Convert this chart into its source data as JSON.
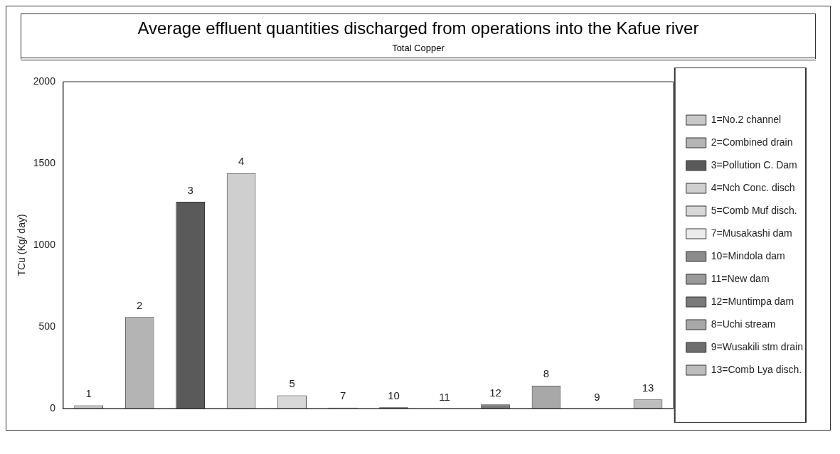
{
  "chart_data": {
    "type": "bar",
    "title": "Average effluent quantities discharged from operations into the Kafue river",
    "subtitle": "Total Copper",
    "ylabel": "TCu (Kg/ day)",
    "categories": [
      "1",
      "2",
      "3",
      "4",
      "5",
      "7",
      "10",
      "11",
      "12",
      "8",
      "9",
      "13"
    ],
    "stacked": true,
    "series": [
      {
        "name": "1=No.2 channel",
        "color": "#c8c8c8",
        "values": [
          20,
          null,
          null,
          null,
          null,
          null,
          null,
          null,
          null,
          null,
          null,
          null
        ]
      },
      {
        "name": "2=Combined drain",
        "color": "#b4b4b4",
        "values": [
          null,
          560,
          null,
          null,
          null,
          null,
          null,
          null,
          null,
          null,
          null,
          null
        ]
      },
      {
        "name": "3=Pollution C. Dam",
        "color": "#5a5a5a",
        "values": [
          null,
          null,
          1265,
          null,
          null,
          null,
          null,
          null,
          null,
          null,
          null,
          null
        ]
      },
      {
        "name": "4=Nch Conc. disch",
        "color": "#cfcfcf",
        "values": [
          null,
          null,
          null,
          1440,
          null,
          null,
          null,
          null,
          null,
          null,
          null,
          null
        ]
      },
      {
        "name": "5=Comb Muf disch.",
        "color": "#d8d8d8",
        "values": [
          null,
          null,
          null,
          null,
          80,
          null,
          null,
          null,
          null,
          null,
          null,
          null
        ]
      },
      {
        "name": "7=Musakashi dam",
        "color": "#ececec",
        "values": [
          null,
          null,
          null,
          null,
          null,
          5,
          null,
          null,
          null,
          null,
          null,
          null
        ]
      },
      {
        "name": "10=Mindola dam",
        "color": "#8c8c8c",
        "values": [
          null,
          null,
          null,
          null,
          null,
          null,
          8,
          null,
          null,
          null,
          null,
          null
        ]
      },
      {
        "name": "11=New dam",
        "color": "#9a9a9a",
        "values": [
          null,
          null,
          null,
          null,
          null,
          null,
          null,
          0,
          null,
          null,
          null,
          null
        ]
      },
      {
        "name": "12=Muntimpa dam",
        "color": "#7a7a7a",
        "values": [
          null,
          null,
          null,
          null,
          null,
          null,
          null,
          null,
          25,
          null,
          null,
          null
        ]
      },
      {
        "name": "8=Uchi stream",
        "color": "#a8a8a8",
        "values": [
          null,
          null,
          null,
          null,
          null,
          null,
          null,
          null,
          null,
          140,
          null,
          null
        ]
      },
      {
        "name": "9=Wusakili stm drain",
        "color": "#6e6e6e",
        "values": [
          null,
          null,
          null,
          null,
          null,
          null,
          null,
          null,
          null,
          null,
          0,
          null
        ]
      },
      {
        "name": "13=Comb Lya disch.",
        "color": "#bdbdbd",
        "values": [
          null,
          null,
          null,
          null,
          null,
          null,
          null,
          null,
          null,
          null,
          null,
          55
        ]
      }
    ],
    "ylim": [
      0,
      2000
    ],
    "yticks": [
      0,
      500,
      1000,
      1500,
      2000
    ],
    "grid": false,
    "legend": "right",
    "tick_labels": "y"
  }
}
